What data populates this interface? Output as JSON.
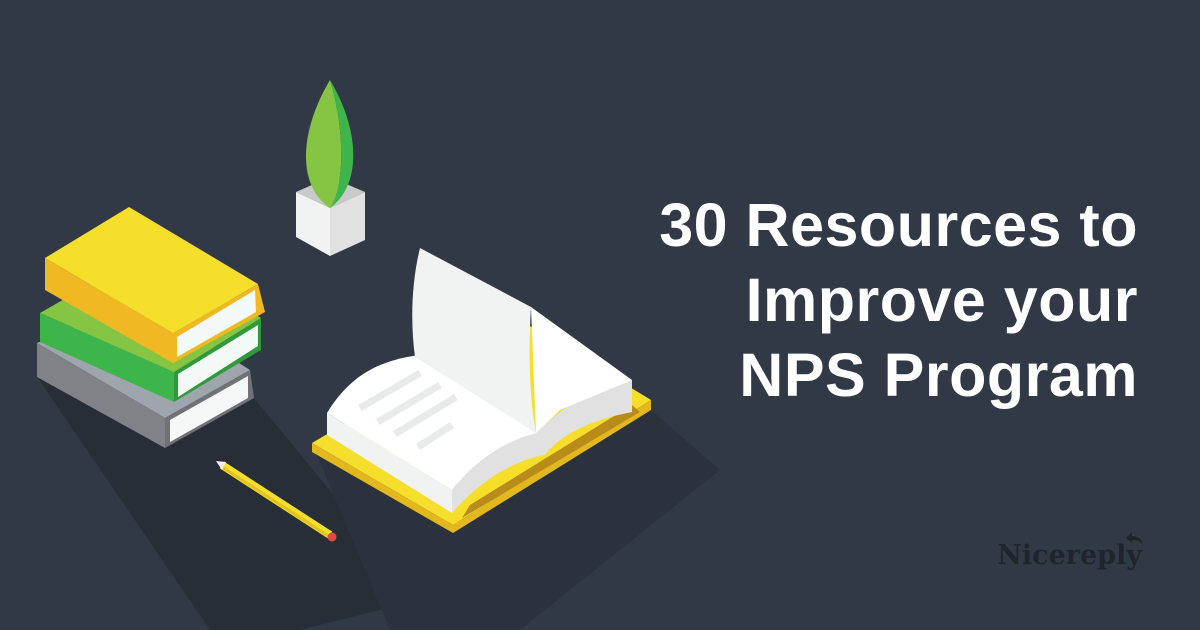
{
  "headline": {
    "lines": [
      "30 Resources to",
      "Improve your",
      "NPS Program"
    ]
  },
  "brand": {
    "logo_text": "Nicereply",
    "icon": "reply-arrow-icon"
  },
  "colors": {
    "background": "#323946",
    "headline": "#ffffff",
    "logo": "#20252d",
    "yellow": "#f5df2a",
    "green": "#3db54a",
    "gray": "#808287"
  }
}
